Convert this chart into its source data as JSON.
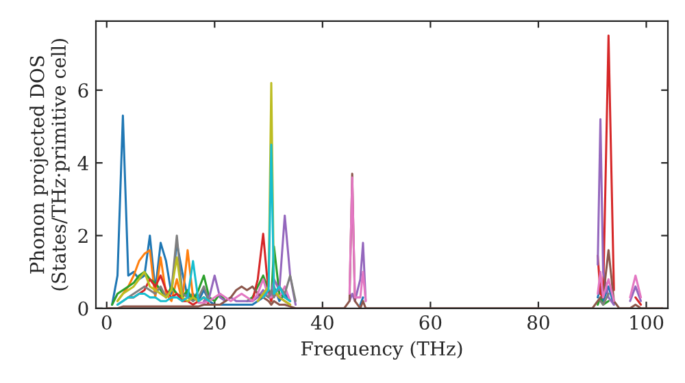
{
  "chart_data": {
    "type": "line",
    "xlabel": "Frequency (THz)",
    "ylabel": "Phonon projected DOS\n(States/THz·primitive cell)",
    "x": [
      0,
      1,
      2,
      3,
      4,
      5,
      6,
      7,
      8,
      9,
      10,
      11,
      12,
      13,
      14,
      15,
      16,
      17,
      18,
      19,
      20,
      21,
      22,
      23,
      24,
      25,
      26,
      27,
      28,
      29,
      30,
      30.5,
      31,
      32,
      33,
      34,
      35,
      36,
      44,
      45,
      45.5,
      46,
      47,
      47.5,
      48,
      49,
      90,
      91,
      91.5,
      92,
      93,
      94,
      95,
      97,
      98,
      99,
      100,
      103
    ],
    "series": [
      {
        "color": "#1f77b4",
        "values": [
          null,
          0.1,
          0.9,
          5.3,
          0.9,
          1.0,
          0.8,
          0.9,
          2.0,
          0.5,
          1.8,
          1.3,
          0.4,
          1.8,
          1.0,
          0.3,
          0.4,
          0.2,
          0.5,
          0.2,
          0.1,
          0.1,
          0.1,
          0.1,
          0.1,
          0.1,
          0.1,
          0.1,
          0.2,
          0.3,
          0.5,
          0.3,
          0.6,
          0.2,
          0.4,
          0.2,
          null,
          null,
          null,
          null,
          null,
          null,
          0.1,
          0.3,
          null,
          null,
          null,
          0.3,
          0.6,
          0.2,
          0.6,
          0.1,
          null,
          null,
          null,
          null,
          null,
          null
        ]
      },
      {
        "color": "#ff7f0e",
        "values": [
          null,
          null,
          0.2,
          0.4,
          0.6,
          0.9,
          1.3,
          1.5,
          1.6,
          0.3,
          1.4,
          0.4,
          0.2,
          0.8,
          0.2,
          1.6,
          0.3,
          0.2,
          0.3,
          0.2,
          null,
          null,
          null,
          null,
          null,
          null,
          null,
          null,
          null,
          null,
          null,
          null,
          null,
          null,
          null,
          null,
          null,
          null,
          null,
          null,
          null,
          null,
          null,
          null,
          null,
          null,
          null,
          null,
          null,
          null,
          null,
          null,
          null,
          null,
          null,
          null,
          null,
          null
        ]
      },
      {
        "color": "#2ca02c",
        "values": [
          null,
          0.1,
          0.4,
          0.5,
          0.6,
          0.7,
          0.9,
          1.0,
          0.8,
          0.7,
          0.5,
          0.3,
          0.6,
          0.4,
          0.3,
          0.5,
          0.2,
          0.5,
          0.9,
          0.3,
          0.2,
          0.4,
          0.2,
          null,
          null,
          null,
          0.2,
          0.3,
          0.6,
          0.9,
          0.5,
          0.2,
          1.7,
          0.4,
          0.3,
          0.2,
          null,
          null,
          null,
          null,
          null,
          null,
          null,
          null,
          null,
          null,
          null,
          0.1,
          0.3,
          0.1,
          0.2,
          null,
          null,
          null,
          null,
          null,
          null,
          null
        ]
      },
      {
        "color": "#d62728",
        "values": [
          null,
          null,
          null,
          null,
          0.3,
          0.3,
          0.4,
          0.5,
          0.8,
          0.6,
          0.9,
          0.5,
          0.3,
          0.4,
          0.2,
          0.2,
          0.1,
          0.2,
          0.3,
          0.1,
          null,
          null,
          null,
          null,
          null,
          null,
          null,
          0.2,
          0.8,
          2.05,
          0.4,
          0.2,
          0.5,
          0.3,
          0.2,
          0.1,
          null,
          null,
          null,
          null,
          null,
          null,
          null,
          null,
          null,
          null,
          null,
          1.45,
          0.4,
          0.3,
          7.5,
          0.5,
          null,
          null,
          0.3,
          0.1,
          null,
          null
        ]
      },
      {
        "color": "#9467bd",
        "values": [
          null,
          null,
          null,
          null,
          null,
          null,
          null,
          null,
          null,
          null,
          null,
          null,
          null,
          null,
          null,
          null,
          null,
          null,
          0.2,
          0.3,
          0.9,
          0.3,
          0.2,
          0.3,
          0.2,
          0.2,
          0.2,
          0.2,
          0.3,
          0.5,
          0.3,
          0.4,
          0.8,
          0.5,
          2.55,
          0.9,
          0.1,
          null,
          null,
          0.2,
          0.4,
          0.2,
          0.8,
          1.8,
          0.2,
          null,
          null,
          1.2,
          5.2,
          1.0,
          0.3,
          0.1,
          null,
          0.2,
          0.6,
          0.2,
          null,
          null
        ]
      },
      {
        "color": "#8c564b",
        "values": [
          0,
          0,
          0,
          0.05,
          0.05,
          0.05,
          0.05,
          0.05,
          0.05,
          0.05,
          0.05,
          0.05,
          0.05,
          0.05,
          0.05,
          0.05,
          0.05,
          0.05,
          0.1,
          0.1,
          0.1,
          0.1,
          0.2,
          0.3,
          0.5,
          0.6,
          0.5,
          0.6,
          0.4,
          0.3,
          0.2,
          0.1,
          0.2,
          0.1,
          0.1,
          0.05,
          0,
          0,
          0,
          0.2,
          3.7,
          0.2,
          0,
          0.2,
          0,
          0,
          0,
          0.2,
          0.3,
          0.3,
          1.6,
          0.2,
          0,
          0,
          0.1,
          0,
          0,
          0
        ]
      },
      {
        "color": "#e377c2",
        "values": [
          null,
          null,
          null,
          null,
          null,
          null,
          null,
          null,
          null,
          null,
          null,
          null,
          null,
          null,
          null,
          null,
          null,
          0.15,
          0.15,
          0.2,
          0.3,
          0.4,
          0.3,
          0.2,
          0.3,
          0.4,
          0.3,
          0.2,
          0.4,
          0.8,
          0.3,
          0.3,
          0.4,
          0.3,
          0.6,
          0.2,
          null,
          null,
          null,
          0.4,
          3.6,
          0.3,
          0.3,
          1.0,
          0.2,
          null,
          null,
          0.4,
          1.0,
          0.3,
          0.8,
          0.2,
          null,
          0.3,
          0.9,
          0.3,
          null,
          null
        ]
      },
      {
        "color": "#7f7f7f",
        "values": [
          null,
          null,
          0.1,
          0.2,
          0.3,
          0.4,
          0.5,
          0.6,
          0.5,
          0.4,
          0.6,
          0.3,
          0.5,
          2.0,
          0.4,
          0.3,
          0.2,
          0.3,
          0.6,
          0.2,
          null,
          null,
          null,
          null,
          null,
          null,
          null,
          null,
          0.2,
          0.4,
          0.3,
          0.5,
          0.3,
          0.6,
          0.4,
          0.9,
          0.2,
          null,
          null,
          null,
          null,
          null,
          null,
          null,
          null,
          null,
          null,
          null,
          0.2,
          0.1,
          0.4,
          null,
          null,
          null,
          null,
          null,
          null,
          null
        ]
      },
      {
        "color": "#bcbd22",
        "values": [
          null,
          null,
          0.2,
          0.4,
          0.5,
          0.6,
          0.8,
          1.0,
          0.6,
          0.5,
          0.4,
          0.3,
          0.5,
          1.4,
          0.3,
          0.2,
          0.3,
          0.2,
          0.3,
          0.2,
          null,
          null,
          null,
          null,
          null,
          null,
          null,
          null,
          0.2,
          0.4,
          0.6,
          6.2,
          0.5,
          0.3,
          0.2,
          0.1,
          null,
          null,
          null,
          null,
          null,
          null,
          null,
          null,
          null,
          null,
          null,
          null,
          null,
          null,
          null,
          null,
          null,
          null,
          null,
          null,
          null,
          null
        ]
      },
      {
        "color": "#17becf",
        "values": [
          null,
          null,
          0.1,
          0.2,
          0.3,
          0.3,
          0.4,
          0.4,
          0.3,
          0.3,
          0.2,
          0.2,
          0.3,
          0.3,
          0.2,
          0.3,
          1.3,
          0.2,
          0.3,
          0.2,
          null,
          null,
          null,
          null,
          null,
          null,
          null,
          null,
          null,
          0.3,
          0.5,
          4.5,
          0.4,
          0.6,
          0.3,
          0.2,
          null,
          null,
          null,
          null,
          null,
          null,
          null,
          null,
          null,
          null,
          null,
          null,
          null,
          null,
          null,
          null,
          null,
          null,
          null,
          null,
          null,
          null
        ]
      }
    ],
    "xlim": [
      -2,
      104
    ],
    "ylim": [
      0,
      7.9
    ],
    "xticks": [
      0,
      20,
      40,
      60,
      80,
      100
    ],
    "yticks": [
      0,
      2,
      4,
      6
    ],
    "grid": false,
    "line_style": "solid",
    "marker": "none"
  }
}
